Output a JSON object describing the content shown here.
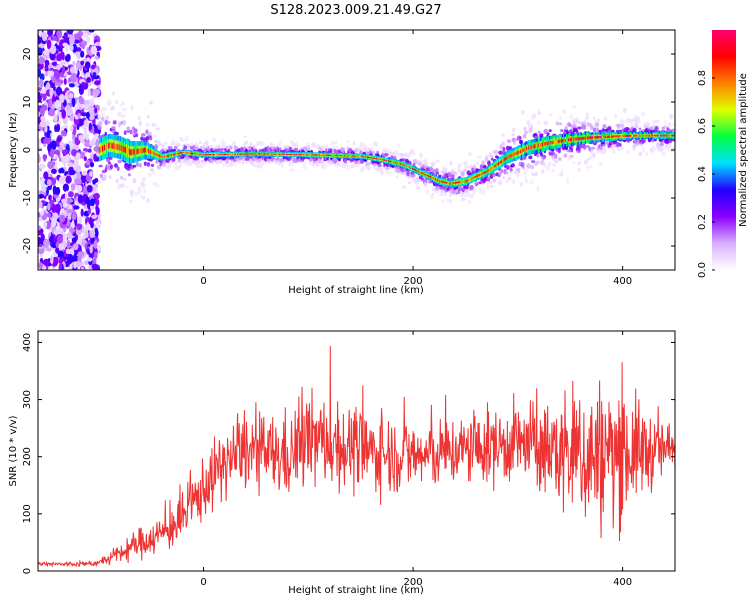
{
  "title": "S128.2023.009.21.49.G27",
  "chart_data": [
    {
      "type": "heatmap",
      "xlabel": "Height of straight line (km)",
      "ylabel": "Frequency (Hz)",
      "xlim": [
        -158,
        450
      ],
      "ylim": [
        -25,
        25
      ],
      "x_ticks": [
        0,
        200,
        400
      ],
      "y_ticks": [
        -20,
        -10,
        0,
        10,
        20
      ],
      "colorbar": {
        "label": "Normalized spectral amplitude",
        "range": [
          0,
          1
        ],
        "ticks": [
          0.0,
          0.2,
          0.4,
          0.6,
          0.8
        ],
        "tick_labels": [
          "0.0",
          "0.2",
          "0.4",
          "0.6",
          "0.8"
        ],
        "colormap": [
          "#ffffff",
          "#d8b0ff",
          "#8a00ff",
          "#2200ff",
          "#00e0ff",
          "#00ff40",
          "#e0ff00",
          "#ff8000",
          "#ff0000",
          "#ff0070"
        ]
      },
      "noise_region_x": [
        -158,
        -100
      ],
      "ridge": {
        "x": [
          -100,
          -90,
          -80,
          -70,
          -55,
          -40,
          -20,
          0,
          50,
          100,
          150,
          170,
          190,
          210,
          225,
          235,
          250,
          270,
          290,
          310,
          330,
          350,
          370,
          390,
          410,
          430,
          450
        ],
        "frequency": [
          0,
          1,
          0.5,
          -0.5,
          0,
          -1.5,
          -0.5,
          -1,
          -0.8,
          -1,
          -1.3,
          -2,
          -3,
          -5,
          -6.5,
          -7,
          -6.5,
          -4.5,
          -1.5,
          0.5,
          1.5,
          2.2,
          2.6,
          2.8,
          3,
          3,
          3
        ],
        "width": [
          4,
          4,
          4,
          4,
          3,
          1.2,
          1.0,
          0.9,
          0.9,
          0.9,
          0.9,
          1.0,
          1.1,
          1.2,
          1.3,
          1.4,
          1.4,
          1.6,
          2.2,
          2.6,
          2.4,
          2.2,
          1.8,
          1.5,
          1.3,
          1.2,
          1.2
        ]
      }
    },
    {
      "type": "line",
      "xlabel": "Height of straight line (km)",
      "ylabel": "SNR (10 * v/v)",
      "xlim": [
        -158,
        450
      ],
      "ylim": [
        0,
        420
      ],
      "x_ticks": [
        0,
        200,
        400
      ],
      "y_ticks": [
        0,
        100,
        200,
        300,
        400
      ],
      "color": "#ee3333",
      "envelope": {
        "x": [
          -158,
          -120,
          -100,
          -80,
          -60,
          -40,
          -20,
          0,
          20,
          40,
          60,
          80,
          100,
          120,
          150,
          180,
          210,
          240,
          270,
          300,
          330,
          350,
          370,
          390,
          410,
          430,
          450
        ],
        "mean": [
          12,
          12,
          14,
          30,
          50,
          65,
          90,
          145,
          190,
          210,
          205,
          200,
          230,
          225,
          210,
          205,
          200,
          210,
          215,
          225,
          210,
          205,
          200,
          205,
          210,
          210,
          215
        ],
        "spread": [
          4,
          4,
          5,
          15,
          25,
          30,
          40,
          50,
          55,
          60,
          60,
          70,
          75,
          70,
          65,
          60,
          55,
          55,
          60,
          65,
          75,
          110,
          120,
          120,
          90,
          55,
          40
        ]
      }
    }
  ]
}
